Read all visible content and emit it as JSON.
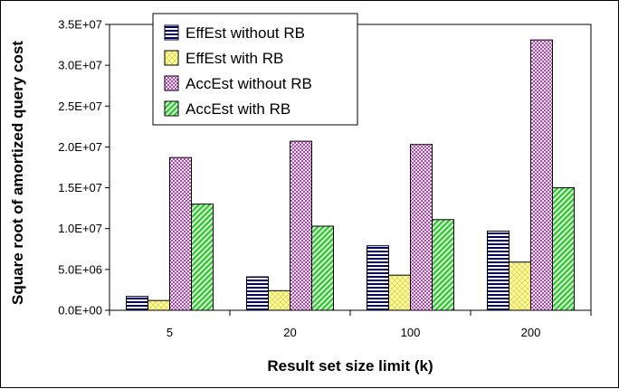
{
  "chart_data": {
    "type": "bar",
    "xlabel": "Result set size limit (k)",
    "ylabel": "Square root of amortized query cost",
    "categories": [
      "5",
      "20",
      "100",
      "200"
    ],
    "ylim": [
      0,
      35000000
    ],
    "yticks": [
      0,
      5000000,
      10000000,
      15000000,
      20000000,
      25000000,
      30000000,
      35000000
    ],
    "ytick_labels": [
      "0.0E+00",
      "5.0E+06",
      "1.0E+07",
      "1.5E+07",
      "2.0E+07",
      "2.5E+07",
      "3.0E+07",
      "3.5E+07"
    ],
    "grid": false,
    "legend_position": "top-center",
    "series": [
      {
        "name": "EffEst without RB",
        "values": [
          1700000,
          4100000,
          7900000,
          9700000
        ],
        "color": "#00007f",
        "pattern": "horizontal-stripes"
      },
      {
        "name": "EffEst with RB",
        "values": [
          1200000,
          2400000,
          4300000,
          5900000
        ],
        "color": "#ffff99",
        "pattern": "crosshatch"
      },
      {
        "name": "AccEst without RB",
        "values": [
          18700000,
          20700000,
          20300000,
          33100000
        ],
        "color": "#cc33cc",
        "pattern": "dots"
      },
      {
        "name": "AccEst with RB",
        "values": [
          13000000,
          10300000,
          11100000,
          15000000
        ],
        "color": "#33cc33",
        "pattern": "diagonal-stripes"
      }
    ]
  }
}
